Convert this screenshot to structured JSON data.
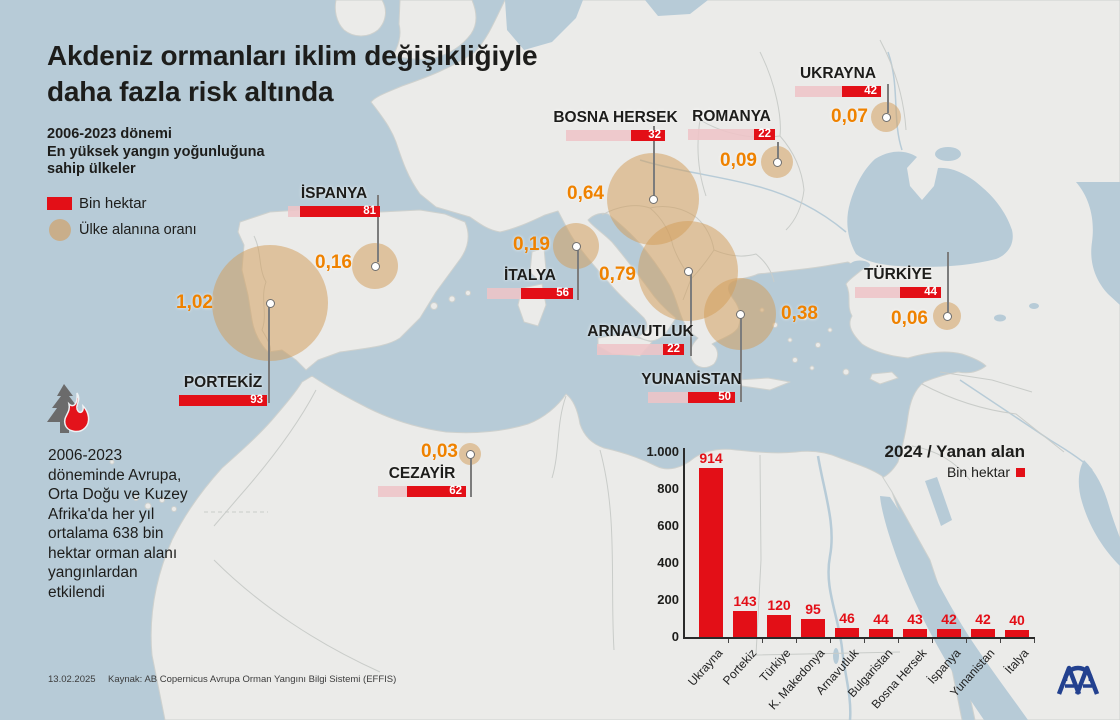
{
  "title": "Akdeniz ormanları iklim değişikliğiyle\ndaha fazla risk altında",
  "subtitle": "2006-2023 dönemi\nEn yüksek yangın yoğunluğuna\nsahip ülkeler",
  "legend": {
    "bar_label": "Bin hektar",
    "circle_label": "Ülke alanına oranı"
  },
  "note": "2006-2023\ndöneminde Avrupa,\nOrta Doğu ve Kuzey\nAfrika'da her yıl\nortalama 638 bin\nhektar orman alanı\nyangınlardan\netkilendi",
  "map": {
    "max_value": 93,
    "countries": [
      {
        "name": "İSPANYA",
        "value": 81,
        "ratio": "0,16"
      },
      {
        "name": "PORTEKİZ",
        "value": 93,
        "ratio": "1,02"
      },
      {
        "name": "CEZAYİR",
        "value": 62,
        "ratio": "0,03"
      },
      {
        "name": "İTALYA",
        "value": 56,
        "ratio": "0,19"
      },
      {
        "name": "BOSNA HERSEK",
        "value": 32,
        "ratio": "0,64"
      },
      {
        "name": "ARNAVUTLUK",
        "value": 22,
        "ratio": "0,79"
      },
      {
        "name": "YUNANİSTAN",
        "value": 50,
        "ratio": "0,38"
      },
      {
        "name": "ROMANYA",
        "value": 22,
        "ratio": "0,09"
      },
      {
        "name": "UKRAYNA",
        "value": 42,
        "ratio": "0,07"
      },
      {
        "name": "TÜRKİYE",
        "value": 44,
        "ratio": "0,06"
      }
    ]
  },
  "chart_data": [
    {
      "type": "bar",
      "title": "2006-2023 dönemi - En yüksek yangın yoğunluğuna sahip ülkeler (harita)",
      "categories": [
        "İspanya",
        "Portekiz",
        "Cezayir",
        "İtalya",
        "Bosna Hersek",
        "Arnavutluk",
        "Yunanistan",
        "Romanya",
        "Ukrayna",
        "Türkiye"
      ],
      "series": [
        {
          "name": "Bin hektar",
          "values": [
            81,
            93,
            62,
            56,
            32,
            22,
            50,
            22,
            42,
            44
          ]
        },
        {
          "name": "Ülke alanına oranı",
          "values": [
            0.16,
            1.02,
            0.03,
            0.19,
            0.64,
            0.79,
            0.38,
            0.09,
            0.07,
            0.06
          ]
        }
      ],
      "legend_position": "top-left",
      "grid": false
    },
    {
      "type": "bar",
      "title": "2024 / Yanan alan",
      "legend_label": "Bin hektar",
      "categories": [
        "Ukrayna",
        "Portekiz",
        "Türkiye",
        "K. Makedonya",
        "Arnavutluk",
        "Bulgaristan",
        "Bosna Hersek",
        "İspanya",
        "Yunanistan",
        "İtalya"
      ],
      "values": [
        914,
        143,
        120,
        95,
        46,
        44,
        43,
        42,
        42,
        40
      ],
      "ylim": [
        0,
        1000
      ],
      "yticks": [
        "0",
        "200",
        "400",
        "600",
        "800",
        "1.000"
      ],
      "xlabel": "",
      "ylabel": "",
      "legend_position": "top-right",
      "grid": false
    }
  ],
  "footer": {
    "date": "13.02.2025",
    "source": "Kaynak: AB Copernicus Avrupa Orman Yangını Bilgi Sistemi (EFFIS)"
  },
  "logo_text": "AA",
  "colors": {
    "accent_red": "#e30f17",
    "ratio_orange": "#ef8200",
    "circle_fill": "rgba(211,157,91,0.52)",
    "sea": "#b7cbd7",
    "land": "#ebebe9",
    "logo_blue": "#23418f"
  }
}
